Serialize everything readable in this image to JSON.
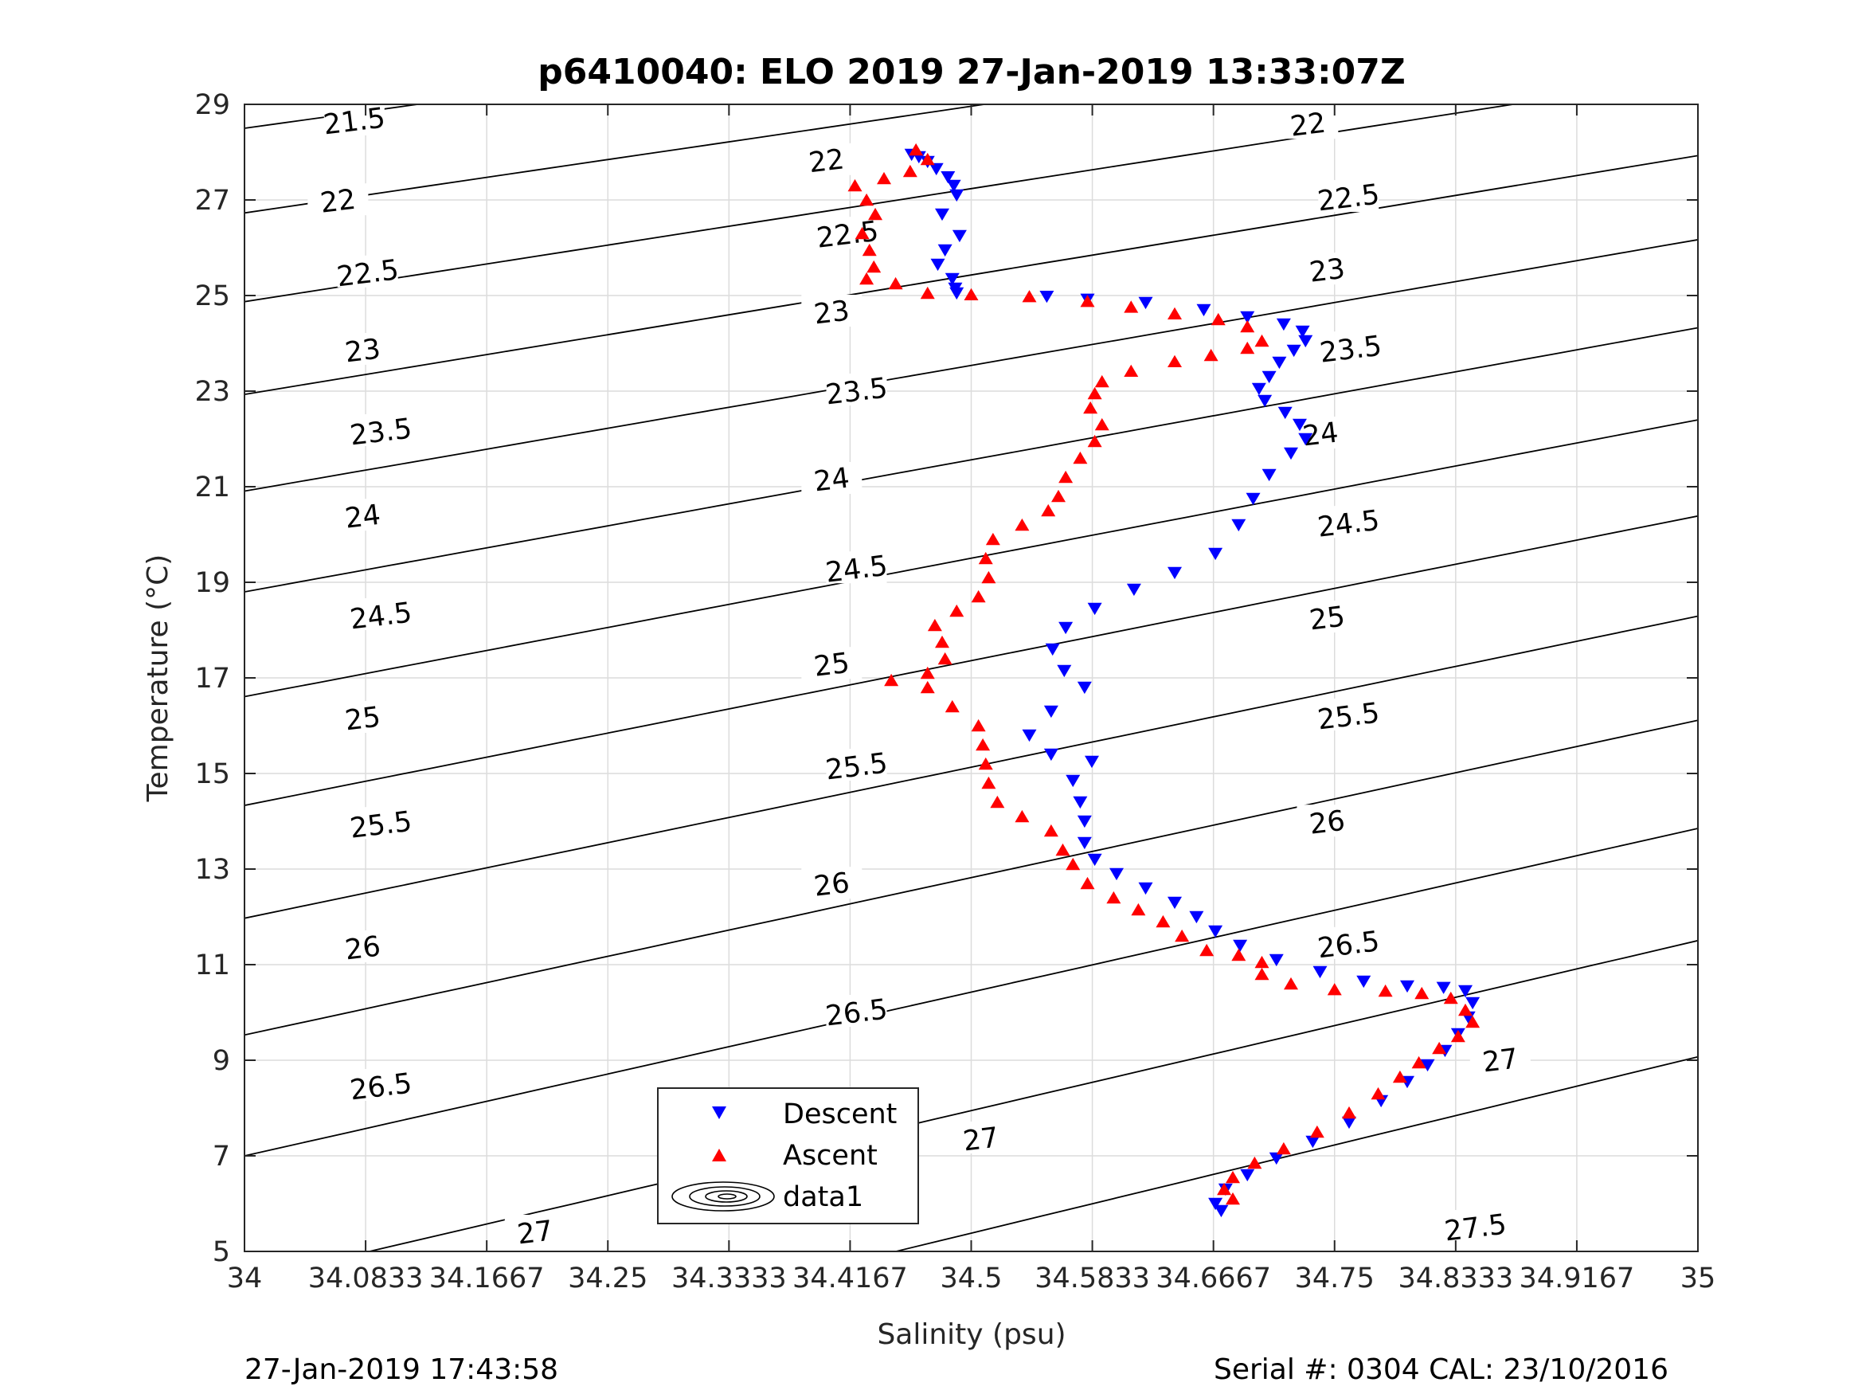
{
  "chart_data": {
    "type": "scatter",
    "title": "p6410040: ELO 2019 27-Jan-2019 13:33:07Z",
    "xlabel": "Salinity (psu)",
    "ylabel": "Temperature (°C)",
    "xlim": [
      34,
      35
    ],
    "ylim": [
      5,
      29
    ],
    "x_ticks": [
      "34",
      "34.0833",
      "34.1667",
      "34.25",
      "34.3333",
      "34.4167",
      "34.5",
      "34.5833",
      "34.6667",
      "34.75",
      "34.8333",
      "34.9167",
      "35"
    ],
    "y_ticks": [
      "5",
      "7",
      "9",
      "11",
      "13",
      "15",
      "17",
      "19",
      "21",
      "23",
      "25",
      "27",
      "29"
    ],
    "grid": true,
    "legend": {
      "placement": "bottom-left",
      "entries": [
        "Descent",
        "Ascent",
        "data1"
      ]
    },
    "colors": {
      "descent": "#0000ff",
      "ascent": "#ff0000",
      "contour": "#000000"
    },
    "density_contours": {
      "name": "data1",
      "levels": [
        21.5,
        22,
        22.5,
        23,
        23.5,
        24,
        24.5,
        25,
        25.5,
        26,
        26.5,
        27,
        27.5
      ],
      "labels": [
        {
          "text": "21.5",
          "s": 34.0755,
          "t": 28.65
        },
        {
          "text": "22",
          "s": 34.0643,
          "t": 26.98
        },
        {
          "text": "22",
          "s": 34.4004,
          "t": 27.82
        },
        {
          "text": "22",
          "s": 34.7317,
          "t": 28.58
        },
        {
          "text": "22.5",
          "s": 34.0848,
          "t": 25.47
        },
        {
          "text": "22.5",
          "s": 34.4149,
          "t": 26.28
        },
        {
          "text": "22.5",
          "s": 34.7596,
          "t": 27.05
        },
        {
          "text": "23",
          "s": 34.0813,
          "t": 23.85
        },
        {
          "text": "23",
          "s": 34.404,
          "t": 24.65
        },
        {
          "text": "23",
          "s": 34.7449,
          "t": 25.53
        },
        {
          "text": "23.5",
          "s": 34.0938,
          "t": 22.15
        },
        {
          "text": "23.5",
          "s": 34.4211,
          "t": 23.0
        },
        {
          "text": "23.5",
          "s": 34.7611,
          "t": 23.88
        },
        {
          "text": "24",
          "s": 34.0813,
          "t": 20.38
        },
        {
          "text": "24",
          "s": 34.404,
          "t": 21.15
        },
        {
          "text": "24",
          "s": 34.7403,
          "t": 22.1
        },
        {
          "text": "24.5",
          "s": 34.0938,
          "t": 18.3
        },
        {
          "text": "24.5",
          "s": 34.4211,
          "t": 19.28
        },
        {
          "text": "24.5",
          "s": 34.7596,
          "t": 20.23
        },
        {
          "text": "25",
          "s": 34.0813,
          "t": 16.15
        },
        {
          "text": "25",
          "s": 34.404,
          "t": 17.28
        },
        {
          "text": "25",
          "s": 34.7449,
          "t": 18.25
        },
        {
          "text": "25.5",
          "s": 34.0938,
          "t": 13.93
        },
        {
          "text": "25.5",
          "s": 34.4211,
          "t": 15.15
        },
        {
          "text": "25.5",
          "s": 34.7596,
          "t": 16.2
        },
        {
          "text": "26",
          "s": 34.0813,
          "t": 11.35
        },
        {
          "text": "26",
          "s": 34.404,
          "t": 12.68
        },
        {
          "text": "26",
          "s": 34.7449,
          "t": 13.98
        },
        {
          "text": "26.5",
          "s": 34.0938,
          "t": 8.45
        },
        {
          "text": "26.5",
          "s": 34.4211,
          "t": 10.0
        },
        {
          "text": "26.5",
          "s": 34.7596,
          "t": 11.42
        },
        {
          "text": "27",
          "s": 34.1999,
          "t": 5.4
        },
        {
          "text": "27",
          "s": 34.5066,
          "t": 7.35
        },
        {
          "text": "27",
          "s": 34.864,
          "t": 9.0
        },
        {
          "text": "27.5",
          "s": 34.8469,
          "t": 5.5
        }
      ]
    },
    "series": [
      {
        "name": "Descent",
        "marker": "triangle-down",
        "points": [
          [
            34.459,
            27.95
          ],
          [
            34.464,
            27.9
          ],
          [
            34.47,
            27.8
          ],
          [
            34.476,
            27.65
          ],
          [
            34.484,
            27.48
          ],
          [
            34.488,
            27.3
          ],
          [
            34.49,
            27.1
          ],
          [
            34.48,
            26.7
          ],
          [
            34.492,
            26.25
          ],
          [
            34.482,
            25.95
          ],
          [
            34.477,
            25.65
          ],
          [
            34.487,
            25.35
          ],
          [
            34.489,
            25.15
          ],
          [
            34.49,
            25.05
          ],
          [
            34.552,
            24.98
          ],
          [
            34.58,
            24.92
          ],
          [
            34.62,
            24.85
          ],
          [
            34.66,
            24.7
          ],
          [
            34.69,
            24.55
          ],
          [
            34.715,
            24.4
          ],
          [
            34.728,
            24.25
          ],
          [
            34.73,
            24.05
          ],
          [
            34.722,
            23.85
          ],
          [
            34.712,
            23.6
          ],
          [
            34.705,
            23.3
          ],
          [
            34.698,
            23.05
          ],
          [
            34.702,
            22.8
          ],
          [
            34.716,
            22.55
          ],
          [
            34.726,
            22.3
          ],
          [
            34.73,
            22.0
          ],
          [
            34.72,
            21.7
          ],
          [
            34.705,
            21.25
          ],
          [
            34.694,
            20.75
          ],
          [
            34.684,
            20.2
          ],
          [
            34.668,
            19.6
          ],
          [
            34.64,
            19.2
          ],
          [
            34.612,
            18.85
          ],
          [
            34.585,
            18.45
          ],
          [
            34.565,
            18.05
          ],
          [
            34.556,
            17.6
          ],
          [
            34.564,
            17.15
          ],
          [
            34.578,
            16.8
          ],
          [
            34.555,
            16.3
          ],
          [
            34.54,
            15.8
          ],
          [
            34.555,
            15.4
          ],
          [
            34.583,
            15.25
          ],
          [
            34.57,
            14.85
          ],
          [
            34.575,
            14.4
          ],
          [
            34.578,
            14.0
          ],
          [
            34.578,
            13.55
          ],
          [
            34.585,
            13.2
          ],
          [
            34.6,
            12.9
          ],
          [
            34.62,
            12.6
          ],
          [
            34.64,
            12.3
          ],
          [
            34.655,
            12.0
          ],
          [
            34.668,
            11.7
          ],
          [
            34.685,
            11.4
          ],
          [
            34.71,
            11.1
          ],
          [
            34.74,
            10.85
          ],
          [
            34.77,
            10.65
          ],
          [
            34.8,
            10.55
          ],
          [
            34.825,
            10.52
          ],
          [
            34.84,
            10.45
          ],
          [
            34.845,
            10.2
          ],
          [
            34.842,
            9.9
          ],
          [
            34.835,
            9.55
          ],
          [
            34.826,
            9.2
          ],
          [
            34.814,
            8.9
          ],
          [
            34.8,
            8.55
          ],
          [
            34.782,
            8.15
          ],
          [
            34.76,
            7.7
          ],
          [
            34.735,
            7.3
          ],
          [
            34.71,
            6.95
          ],
          [
            34.69,
            6.6
          ],
          [
            34.675,
            6.3
          ],
          [
            34.668,
            6.0
          ],
          [
            34.672,
            5.85
          ]
        ]
      },
      {
        "name": "Ascent",
        "marker": "triangle-up",
        "points": [
          [
            34.462,
            28.05
          ],
          [
            34.47,
            27.85
          ],
          [
            34.458,
            27.6
          ],
          [
            34.44,
            27.45
          ],
          [
            34.42,
            27.3
          ],
          [
            34.428,
            27.0
          ],
          [
            34.434,
            26.7
          ],
          [
            34.425,
            26.3
          ],
          [
            34.43,
            25.95
          ],
          [
            34.433,
            25.6
          ],
          [
            34.428,
            25.35
          ],
          [
            34.448,
            25.25
          ],
          [
            34.47,
            25.05
          ],
          [
            34.5,
            25.02
          ],
          [
            34.54,
            24.98
          ],
          [
            34.58,
            24.88
          ],
          [
            34.61,
            24.76
          ],
          [
            34.64,
            24.62
          ],
          [
            34.67,
            24.5
          ],
          [
            34.69,
            24.35
          ],
          [
            34.7,
            24.05
          ],
          [
            34.69,
            23.9
          ],
          [
            34.665,
            23.75
          ],
          [
            34.64,
            23.62
          ],
          [
            34.61,
            23.42
          ],
          [
            34.59,
            23.2
          ],
          [
            34.585,
            22.95
          ],
          [
            34.582,
            22.65
          ],
          [
            34.59,
            22.3
          ],
          [
            34.585,
            21.95
          ],
          [
            34.575,
            21.6
          ],
          [
            34.565,
            21.2
          ],
          [
            34.56,
            20.8
          ],
          [
            34.553,
            20.5
          ],
          [
            34.535,
            20.2
          ],
          [
            34.515,
            19.9
          ],
          [
            34.51,
            19.5
          ],
          [
            34.512,
            19.1
          ],
          [
            34.505,
            18.7
          ],
          [
            34.49,
            18.4
          ],
          [
            34.475,
            18.1
          ],
          [
            34.48,
            17.75
          ],
          [
            34.482,
            17.4
          ],
          [
            34.47,
            17.1
          ],
          [
            34.445,
            16.95
          ],
          [
            34.47,
            16.8
          ],
          [
            34.487,
            16.4
          ],
          [
            34.505,
            16.0
          ],
          [
            34.508,
            15.6
          ],
          [
            34.51,
            15.2
          ],
          [
            34.512,
            14.8
          ],
          [
            34.518,
            14.4
          ],
          [
            34.535,
            14.1
          ],
          [
            34.555,
            13.8
          ],
          [
            34.563,
            13.4
          ],
          [
            34.57,
            13.1
          ],
          [
            34.58,
            12.7
          ],
          [
            34.598,
            12.4
          ],
          [
            34.615,
            12.15
          ],
          [
            34.632,
            11.9
          ],
          [
            34.645,
            11.6
          ],
          [
            34.662,
            11.3
          ],
          [
            34.684,
            11.2
          ],
          [
            34.7,
            11.05
          ],
          [
            34.7,
            10.8
          ],
          [
            34.72,
            10.6
          ],
          [
            34.75,
            10.48
          ],
          [
            34.785,
            10.45
          ],
          [
            34.81,
            10.4
          ],
          [
            34.83,
            10.3
          ],
          [
            34.84,
            10.05
          ],
          [
            34.845,
            9.8
          ],
          [
            34.835,
            9.5
          ],
          [
            34.822,
            9.25
          ],
          [
            34.808,
            8.95
          ],
          [
            34.795,
            8.65
          ],
          [
            34.78,
            8.3
          ],
          [
            34.76,
            7.9
          ],
          [
            34.738,
            7.5
          ],
          [
            34.715,
            7.15
          ],
          [
            34.695,
            6.85
          ],
          [
            34.68,
            6.55
          ],
          [
            34.674,
            6.3
          ],
          [
            34.68,
            6.1
          ]
        ]
      }
    ]
  },
  "footer": {
    "left": "27-Jan-2019 17:43:58",
    "right": "Serial #: 0304  CAL: 23/10/2016"
  }
}
